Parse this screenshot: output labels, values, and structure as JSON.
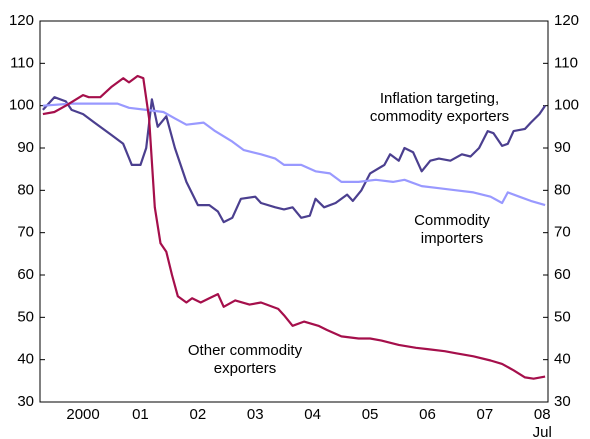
{
  "chart_data": {
    "type": "line",
    "xlim": [
      1999.75,
      2008.6
    ],
    "xticks": [
      {
        "value": 2000.5,
        "label": "2000"
      },
      {
        "value": 2001.5,
        "label": "01"
      },
      {
        "value": 2002.5,
        "label": "02"
      },
      {
        "value": 2003.5,
        "label": "03"
      },
      {
        "value": 2004.5,
        "label": "04"
      },
      {
        "value": 2005.5,
        "label": "05"
      },
      {
        "value": 2006.5,
        "label": "06"
      },
      {
        "value": 2007.5,
        "label": "07"
      },
      {
        "value": 2008.5,
        "label": "08"
      }
    ],
    "x_note": "Jul",
    "ylim": [
      30,
      120
    ],
    "yticks": [
      30,
      40,
      50,
      60,
      70,
      80,
      90,
      100,
      110,
      120
    ],
    "y2lim": [
      30,
      120
    ],
    "y2ticks": [
      30,
      40,
      50,
      60,
      70,
      80,
      90,
      100,
      110,
      120
    ],
    "grid": false,
    "series": [
      {
        "name": "Inflation targeting, commodity exporters",
        "color": "#4b3f8f",
        "x": [
          1999.8,
          2000.0,
          2000.2,
          2000.3,
          2000.5,
          2000.7,
          2001.0,
          2001.2,
          2001.35,
          2001.5,
          2001.6,
          2001.7,
          2001.8,
          2001.95,
          2002.1,
          2002.3,
          2002.5,
          2002.7,
          2002.85,
          2002.95,
          2003.1,
          2003.25,
          2003.5,
          2003.6,
          2003.85,
          2004.0,
          2004.15,
          2004.3,
          2004.45,
          2004.55,
          2004.7,
          2004.9,
          2005.1,
          2005.2,
          2005.35,
          2005.5,
          2005.75,
          2005.85,
          2006.0,
          2006.1,
          2006.25,
          2006.4,
          2006.55,
          2006.7,
          2006.9,
          2007.1,
          2007.25,
          2007.4,
          2007.55,
          2007.65,
          2007.8,
          2007.9,
          2008.0,
          2008.2,
          2008.3,
          2008.45,
          2008.55
        ],
        "values": [
          99,
          102,
          101,
          99,
          98,
          96,
          93,
          91,
          86,
          86,
          90,
          101.5,
          95,
          97.5,
          90,
          82,
          76.5,
          76.5,
          75,
          72.5,
          73.5,
          78,
          78.5,
          77,
          76,
          75.5,
          76,
          73.5,
          74,
          78,
          76,
          77,
          79,
          77.5,
          80,
          84,
          86,
          88.5,
          87,
          90,
          89,
          84.5,
          87,
          87.5,
          87,
          88.5,
          88,
          90,
          94,
          93.5,
          90.5,
          91,
          94,
          94.5,
          96,
          98,
          100
        ]
      },
      {
        "name": "Commodity importers",
        "color": "#9999ff",
        "x": [
          1999.8,
          2000.3,
          2000.8,
          2001.1,
          2001.3,
          2001.6,
          2001.9,
          2002.1,
          2002.3,
          2002.6,
          2002.8,
          2003.1,
          2003.3,
          2003.6,
          2003.85,
          2004.0,
          2004.3,
          2004.55,
          2004.8,
          2005.0,
          2005.3,
          2005.6,
          2005.9,
          2006.1,
          2006.4,
          2006.7,
          2007.0,
          2007.3,
          2007.6,
          2007.8,
          2007.9,
          2008.1,
          2008.3,
          2008.55
        ],
        "values": [
          100,
          100.5,
          100.5,
          100.5,
          99.5,
          99,
          98.5,
          97,
          95.5,
          96,
          94,
          91.5,
          89.5,
          88.5,
          87.5,
          86,
          86,
          84.5,
          84,
          82,
          82,
          82.5,
          82,
          82.5,
          81,
          80.5,
          80,
          79.5,
          78.5,
          77,
          79.5,
          78.5,
          77.5,
          76.5
        ]
      },
      {
        "name": "Other commodity exporters",
        "color": "#a50f4b",
        "x": [
          1999.8,
          2000.0,
          2000.2,
          2000.5,
          2000.6,
          2000.8,
          2001.0,
          2001.2,
          2001.3,
          2001.45,
          2001.55,
          2001.65,
          2001.75,
          2001.85,
          2001.95,
          2002.05,
          2002.15,
          2002.3,
          2002.4,
          2002.55,
          2002.7,
          2002.85,
          2002.95,
          2003.15,
          2003.4,
          2003.6,
          2003.9,
          2004.0,
          2004.15,
          2004.35,
          2004.6,
          2004.75,
          2005.0,
          2005.3,
          2005.5,
          2005.7,
          2006.0,
          2006.3,
          2006.5,
          2006.8,
          2007.0,
          2007.3,
          2007.6,
          2007.8,
          2008.0,
          2008.2,
          2008.35,
          2008.55
        ],
        "values": [
          98,
          98.5,
          100,
          102.5,
          102,
          102,
          104.5,
          106.5,
          105.5,
          107,
          106.5,
          97,
          76,
          67.5,
          65.5,
          60,
          55,
          53.5,
          54.5,
          53.5,
          54.5,
          55.5,
          52.5,
          54,
          53,
          53.5,
          52,
          50.5,
          48,
          49,
          48,
          47,
          45.5,
          45,
          45,
          44.5,
          43.5,
          42.8,
          42.5,
          42,
          41.5,
          40.8,
          39.8,
          39,
          37.5,
          35.8,
          35.5,
          36
        ]
      }
    ]
  }
}
